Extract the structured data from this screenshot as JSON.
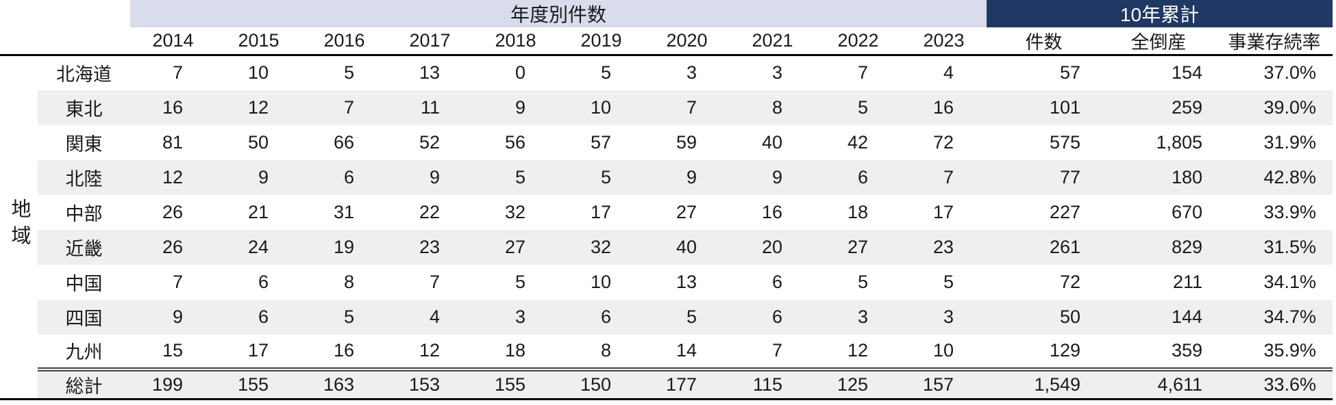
{
  "colors": {
    "yearly_band_bg": "#D8DCEB",
    "cumulative_band_bg": "#1F3864",
    "cumulative_band_text": "#FFFFFF",
    "row_stripe_bg": "#EFEFEF",
    "text": "#1A1A1A",
    "heavy_rule": "#000000"
  },
  "chart_data": {
    "type": "table",
    "group_headers": {
      "yearly": "年度別件数",
      "cumulative": "10年累計"
    },
    "row_axis_label": "地域",
    "columns": [
      "2014",
      "2015",
      "2016",
      "2017",
      "2018",
      "2019",
      "2020",
      "2021",
      "2022",
      "2023",
      "件数",
      "全倒産",
      "事業存続率"
    ],
    "rows": [
      {
        "region": "北海道",
        "cells": [
          "7",
          "10",
          "5",
          "13",
          "0",
          "5",
          "3",
          "3",
          "7",
          "4",
          "57",
          "154",
          "37.0%"
        ]
      },
      {
        "region": "東北",
        "cells": [
          "16",
          "12",
          "7",
          "11",
          "9",
          "10",
          "7",
          "8",
          "5",
          "16",
          "101",
          "259",
          "39.0%"
        ]
      },
      {
        "region": "関東",
        "cells": [
          "81",
          "50",
          "66",
          "52",
          "56",
          "57",
          "59",
          "40",
          "42",
          "72",
          "575",
          "1,805",
          "31.9%"
        ]
      },
      {
        "region": "北陸",
        "cells": [
          "12",
          "9",
          "6",
          "9",
          "5",
          "5",
          "9",
          "9",
          "6",
          "7",
          "77",
          "180",
          "42.8%"
        ]
      },
      {
        "region": "中部",
        "cells": [
          "26",
          "21",
          "31",
          "22",
          "32",
          "17",
          "27",
          "16",
          "18",
          "17",
          "227",
          "670",
          "33.9%"
        ]
      },
      {
        "region": "近畿",
        "cells": [
          "26",
          "24",
          "19",
          "23",
          "27",
          "32",
          "40",
          "20",
          "27",
          "23",
          "261",
          "829",
          "31.5%"
        ]
      },
      {
        "region": "中国",
        "cells": [
          "7",
          "6",
          "8",
          "7",
          "5",
          "10",
          "13",
          "6",
          "5",
          "5",
          "72",
          "211",
          "34.1%"
        ]
      },
      {
        "region": "四国",
        "cells": [
          "9",
          "6",
          "5",
          "4",
          "3",
          "6",
          "5",
          "6",
          "3",
          "3",
          "50",
          "144",
          "34.7%"
        ]
      },
      {
        "region": "九州",
        "cells": [
          "15",
          "17",
          "16",
          "12",
          "18",
          "8",
          "14",
          "7",
          "12",
          "10",
          "129",
          "359",
          "35.9%"
        ]
      },
      {
        "region": "総計",
        "is_total": true,
        "cells": [
          "199",
          "155",
          "163",
          "153",
          "155",
          "150",
          "177",
          "115",
          "125",
          "157",
          "1,549",
          "4,611",
          "33.6%"
        ]
      }
    ]
  }
}
